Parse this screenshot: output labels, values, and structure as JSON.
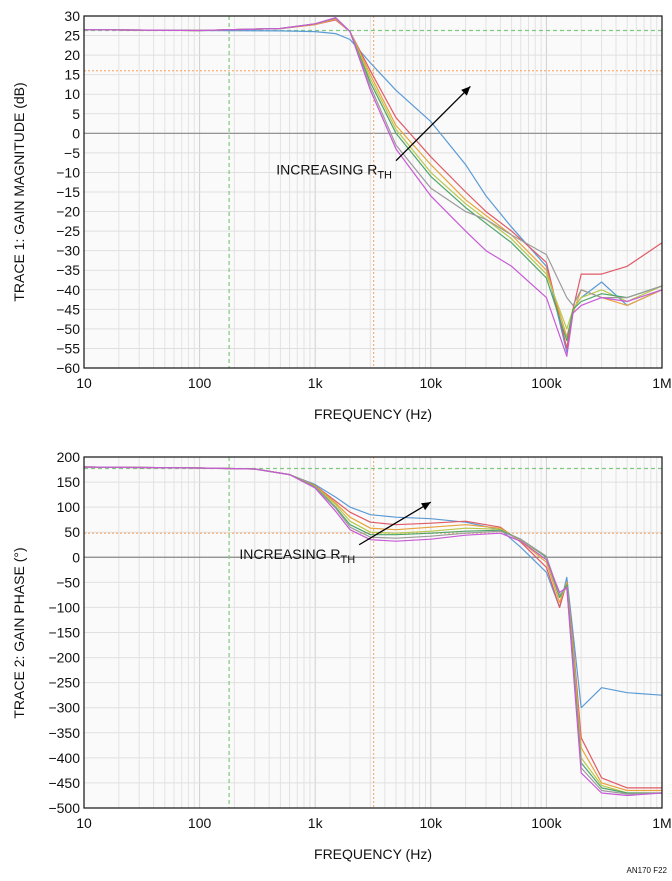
{
  "figure_id": "AN170 F22",
  "colors": {
    "series": [
      "#5b9bd5",
      "#e05a67",
      "#e8a33d",
      "#b8c94a",
      "#4ea46a",
      "#9b9b9b",
      "#c85ad6"
    ],
    "ref_green": "#7fc97f",
    "ref_orange": "#f2b27a",
    "zero_line": "#888888",
    "frame": "#222222"
  },
  "chart_data": [
    {
      "type": "line",
      "title": "",
      "xlabel": "FREQUENCY (Hz)",
      "ylabel": "TRACE 1: GAIN MAGNITUDE (dB)",
      "xscale": "log",
      "xlim": [
        10,
        1000000
      ],
      "ylim": [
        -60,
        30
      ],
      "grid": true,
      "xticks": [
        10,
        100,
        1000,
        10000,
        100000,
        1000000
      ],
      "xtick_labels": [
        "10",
        "100",
        "1k",
        "10k",
        "100k",
        "1M"
      ],
      "yticks": [
        30,
        25,
        20,
        15,
        10,
        5,
        0,
        -5,
        -10,
        -15,
        -20,
        -25,
        -30,
        -35,
        -40,
        -45,
        -50,
        -55,
        -60
      ],
      "ytick_labels": [
        "30",
        "25",
        "20",
        "15",
        "10",
        "5",
        "0",
        "−5",
        "−10",
        "−15",
        "−20",
        "−25",
        "−30",
        "−35",
        "−40",
        "−45",
        "−50",
        "−55",
        "−60"
      ],
      "ref_lines": {
        "vertical_green": 180,
        "vertical_orange": 3200,
        "horizontal_green": 26.3,
        "horizontal_orange": 16
      },
      "annotation": {
        "text": "INCREASING R",
        "subscript": "TH",
        "arrow_from": [
          5000,
          -7
        ],
        "arrow_to": [
          22000,
          12
        ]
      },
      "series": [
        {
          "x": [
            10,
            100,
            500,
            1000,
            1500,
            2000,
            3000,
            5000,
            10000,
            20000,
            30000,
            50000,
            100000,
            150000,
            170000,
            200000,
            300000,
            500000,
            1000000
          ],
          "y": [
            26.5,
            26.3,
            26.2,
            26.0,
            25.5,
            24,
            18,
            11,
            3,
            -8,
            -16,
            -24,
            -34,
            -56,
            -45,
            -42,
            -38,
            -44,
            -40
          ]
        },
        {
          "x": [
            10,
            100,
            500,
            1000,
            1500,
            2000,
            3000,
            5000,
            10000,
            20000,
            30000,
            50000,
            100000,
            150000,
            170000,
            200000,
            300000,
            500000,
            1000000
          ],
          "y": [
            26.5,
            26.3,
            26.8,
            27.8,
            29.0,
            26,
            16,
            4,
            -6,
            -15,
            -20,
            -25,
            -33,
            -55,
            -45,
            -36,
            -36,
            -34,
            -28
          ]
        },
        {
          "x": [
            10,
            100,
            500,
            1000,
            1500,
            2000,
            3000,
            5000,
            10000,
            20000,
            30000,
            50000,
            100000,
            150000,
            170000,
            200000,
            300000,
            500000,
            1000000
          ],
          "y": [
            26.5,
            26.3,
            26.8,
            27.8,
            29.2,
            26,
            15,
            2,
            -8,
            -17,
            -21,
            -26,
            -35,
            -52,
            -46,
            -40,
            -42,
            -44,
            -40
          ]
        },
        {
          "x": [
            10,
            100,
            500,
            1000,
            1500,
            2000,
            3000,
            5000,
            10000,
            20000,
            30000,
            50000,
            100000,
            150000,
            170000,
            200000,
            300000,
            500000,
            1000000
          ],
          "y": [
            26.5,
            26.3,
            26.8,
            28.0,
            29.4,
            26,
            14,
            1,
            -10,
            -18,
            -22,
            -27,
            -36,
            -50,
            -45,
            -42,
            -40,
            -43,
            -39
          ]
        },
        {
          "x": [
            10,
            100,
            500,
            1000,
            1500,
            2000,
            3000,
            5000,
            10000,
            20000,
            30000,
            50000,
            100000,
            150000,
            170000,
            200000,
            300000,
            500000,
            1000000
          ],
          "y": [
            26.5,
            26.3,
            26.8,
            28.0,
            29.5,
            26,
            13,
            0,
            -11,
            -19,
            -23,
            -28,
            -37,
            -53,
            -45,
            -43,
            -41,
            -42,
            -39
          ]
        },
        {
          "x": [
            10,
            100,
            500,
            1000,
            1500,
            2000,
            3000,
            5000,
            10000,
            20000,
            30000,
            50000,
            100000,
            150000,
            170000,
            200000,
            300000,
            500000,
            1000000
          ],
          "y": [
            26.5,
            26.3,
            26.8,
            28.0,
            29.5,
            26,
            12,
            -3,
            -14,
            -20,
            -22,
            -26,
            -31,
            -42,
            -44,
            -40,
            -42,
            -42,
            -39
          ]
        },
        {
          "x": [
            10,
            100,
            500,
            1000,
            1500,
            2000,
            3000,
            5000,
            10000,
            20000,
            30000,
            50000,
            100000,
            150000,
            170000,
            200000,
            300000,
            500000,
            1000000
          ],
          "y": [
            26.5,
            26.3,
            26.8,
            28.0,
            29.6,
            26,
            11,
            -4,
            -16,
            -25,
            -30,
            -34,
            -42,
            -57,
            -46,
            -44,
            -42,
            -43,
            -40
          ]
        }
      ]
    },
    {
      "type": "line",
      "title": "",
      "xlabel": "FREQUENCY (Hz)",
      "ylabel": "TRACE 2: GAIN PHASE (°)",
      "xscale": "log",
      "xlim": [
        10,
        1000000
      ],
      "ylim": [
        -500,
        200
      ],
      "grid": true,
      "xticks": [
        10,
        100,
        1000,
        10000,
        100000,
        1000000
      ],
      "xtick_labels": [
        "10",
        "100",
        "1k",
        "10k",
        "100k",
        "1M"
      ],
      "yticks": [
        200,
        150,
        100,
        50,
        0,
        -50,
        -100,
        -150,
        -200,
        -250,
        -300,
        -350,
        -400,
        -450,
        -500
      ],
      "ytick_labels": [
        "200",
        "150",
        "100",
        "50",
        "0",
        "−50",
        "−100",
        "−150",
        "−200",
        "−250",
        "−300",
        "−350",
        "−400",
        "−450",
        "−500"
      ],
      "ref_lines": {
        "vertical_green": 180,
        "vertical_orange": 3200,
        "horizontal_green": 177,
        "horizontal_orange": 48
      },
      "annotation": {
        "text": "INCREASING R",
        "subscript": "TH",
        "arrow_from": [
          2400,
          25
        ],
        "arrow_to": [
          10000,
          110
        ]
      },
      "series": [
        {
          "x": [
            10,
            100,
            300,
            600,
            1000,
            1500,
            2000,
            3000,
            5000,
            10000,
            20000,
            40000,
            60000,
            100000,
            130000,
            150000,
            170000,
            200000,
            300000,
            500000,
            1000000
          ],
          "y": [
            180,
            178,
            176,
            165,
            145,
            120,
            100,
            85,
            80,
            77,
            70,
            55,
            20,
            -30,
            -100,
            -40,
            -150,
            -300,
            -260,
            -270,
            -275
          ]
        },
        {
          "x": [
            10,
            100,
            300,
            600,
            1000,
            1500,
            2000,
            3000,
            5000,
            10000,
            20000,
            40000,
            60000,
            100000,
            130000,
            150000,
            170000,
            200000,
            300000,
            500000,
            1000000
          ],
          "y": [
            180,
            178,
            176,
            165,
            143,
            112,
            90,
            70,
            65,
            68,
            72,
            60,
            30,
            -20,
            -100,
            -50,
            -170,
            -360,
            -440,
            -460,
            -460
          ]
        },
        {
          "x": [
            10,
            100,
            300,
            600,
            1000,
            1500,
            2000,
            3000,
            5000,
            10000,
            20000,
            40000,
            60000,
            100000,
            130000,
            150000,
            170000,
            200000,
            300000,
            500000,
            1000000
          ],
          "y": [
            180,
            178,
            176,
            165,
            142,
            108,
            80,
            58,
            55,
            60,
            65,
            58,
            32,
            -10,
            -90,
            -50,
            -180,
            -380,
            -450,
            -465,
            -465
          ]
        },
        {
          "x": [
            10,
            100,
            300,
            600,
            1000,
            1500,
            2000,
            3000,
            5000,
            10000,
            20000,
            40000,
            60000,
            100000,
            130000,
            150000,
            170000,
            200000,
            300000,
            500000,
            1000000
          ],
          "y": [
            180,
            178,
            176,
            165,
            141,
            105,
            72,
            50,
            48,
            52,
            58,
            56,
            34,
            -5,
            -80,
            -60,
            -190,
            -400,
            -455,
            -470,
            -470
          ]
        },
        {
          "x": [
            10,
            100,
            300,
            600,
            1000,
            1500,
            2000,
            3000,
            5000,
            10000,
            20000,
            40000,
            60000,
            100000,
            130000,
            150000,
            170000,
            200000,
            300000,
            500000,
            1000000
          ],
          "y": [
            180,
            178,
            176,
            165,
            140,
            100,
            65,
            45,
            45,
            48,
            52,
            54,
            36,
            0,
            -80,
            -55,
            -200,
            -410,
            -460,
            -470,
            -470
          ]
        },
        {
          "x": [
            10,
            100,
            300,
            600,
            1000,
            1500,
            2000,
            3000,
            5000,
            10000,
            20000,
            40000,
            60000,
            100000,
            130000,
            150000,
            170000,
            200000,
            300000,
            500000,
            1000000
          ],
          "y": [
            180,
            178,
            176,
            165,
            139,
            98,
            60,
            40,
            38,
            42,
            48,
            52,
            36,
            2,
            -75,
            -60,
            -210,
            -420,
            -465,
            -472,
            -470
          ]
        },
        {
          "x": [
            10,
            100,
            300,
            600,
            1000,
            1500,
            2000,
            3000,
            5000,
            10000,
            20000,
            40000,
            60000,
            100000,
            130000,
            150000,
            170000,
            200000,
            300000,
            500000,
            1000000
          ],
          "y": [
            180,
            178,
            176,
            165,
            138,
            92,
            55,
            35,
            32,
            36,
            44,
            48,
            32,
            -5,
            -70,
            -60,
            -220,
            -430,
            -470,
            -475,
            -470
          ]
        }
      ]
    }
  ]
}
